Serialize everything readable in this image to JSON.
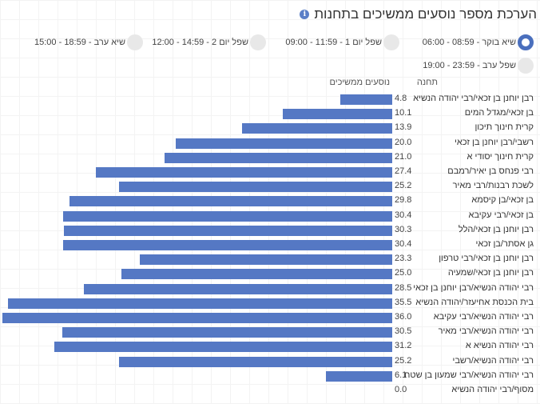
{
  "title": "הערכת מספר נוסעים ממשיכים בתחנות",
  "icons": {
    "info": "info-icon"
  },
  "time_filters": [
    {
      "label": "שיא בוקר - 08:59 - 06:00",
      "selected": true
    },
    {
      "label": "שפל יום 1 - 11:59 - 09:00",
      "selected": false
    },
    {
      "label": "שפל יום 2 - 14:59 - 12:00",
      "selected": false
    },
    {
      "label": "שיא ערב - 18:59 - 15:00",
      "selected": false
    },
    {
      "label": "שפל ערב - 23:59 - 19:00",
      "selected": false
    }
  ],
  "colors": {
    "bar": "#5578c4",
    "selected_radio": "#4a6fbd"
  },
  "chart_data": {
    "type": "bar",
    "orientation": "horizontal",
    "column_headers": {
      "station": "תחנה",
      "value": "נוסעים ממשיכים"
    },
    "categories": [
      "רבן יוחנן בן זכאי/רבי יהודה הנשיא",
      "בן זכאי/מגדל המים",
      "קרית חינוך תיכון",
      "רשבי/רבן יוחנן בן זכאי",
      "קרית חינוך יסודי א",
      "רבי פנחס בן יאיר/רמבם",
      "לשכת רבנות/רבי מאיר",
      "בן זכאי/בן קיסמא",
      "בן זכאי/רבי עקיבא",
      "רבן יוחנן בן זכאי/הלל",
      "גן אסתר/בן זכאי",
      "רבן יוחנן בן זכאי/רבי טרפון",
      "רבן יוחנן בן זכאי/שמעיה",
      "רבי יהודה הנשיא/רבן יוחנן בן זכאי",
      "בית הכנסת אחיעזר/יהודה הנשיא",
      "רבי יהודה הנשיא/רבי עקיבא",
      "רבי יהודה הנשיא/רבי מאיר",
      "רבי יהודה הנשיא א",
      "רבי יהודה הנשיא/רשבי",
      "רבי יהודה הנשיא/רבי שמעון בן שטח",
      "מסוף/רבי יהודה הנשיא"
    ],
    "values": [
      4.8,
      10.1,
      13.9,
      20.0,
      21.0,
      27.4,
      25.2,
      29.8,
      30.4,
      30.3,
      30.4,
      23.3,
      25.0,
      28.5,
      35.5,
      36.0,
      30.5,
      31.2,
      25.2,
      6.1,
      0.0
    ],
    "value_labels": [
      "4.8",
      "10.1",
      "13.9",
      "20.0",
      "21.0",
      "27.4",
      "25.2",
      "29.8",
      "30.4",
      "30.3",
      "30.4",
      "23.3",
      "25.0",
      "28.5",
      "35.5",
      "36.0",
      "30.5",
      "31.2",
      "25.2",
      "6.1",
      "0.0"
    ],
    "xlim": [
      0,
      36
    ]
  }
}
